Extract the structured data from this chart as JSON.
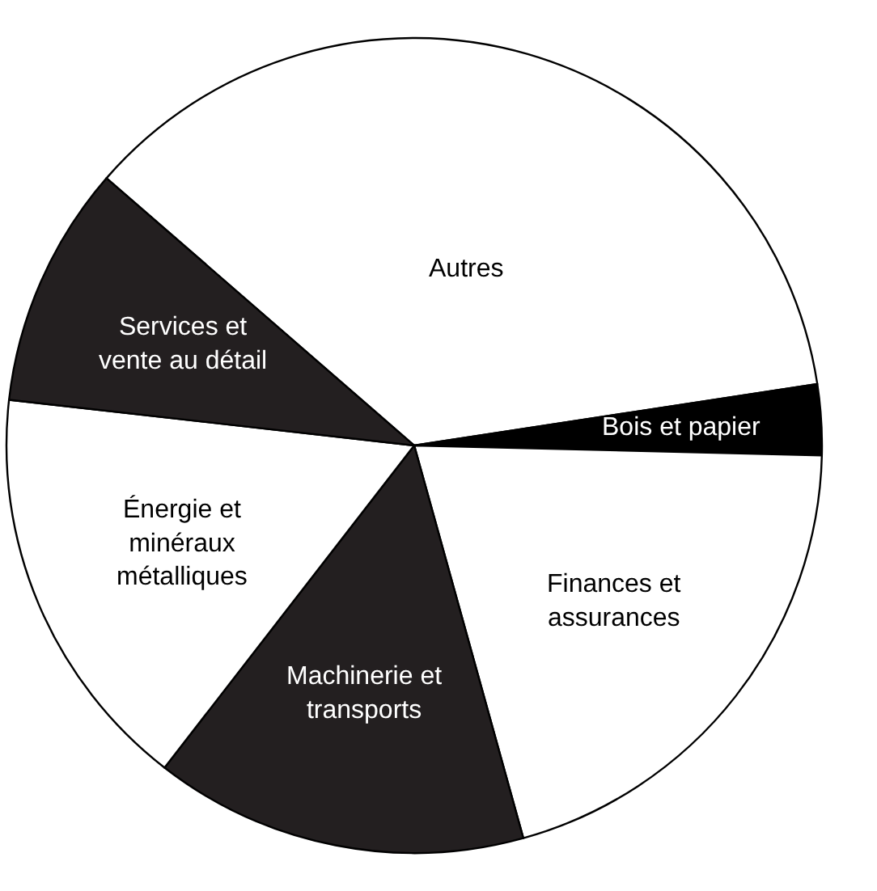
{
  "chart_data": {
    "type": "pie",
    "categories": [
      "Autres",
      "Bois et papier",
      "Finances et assurances",
      "Machinerie et transports",
      "Énergie et minéraux métalliques",
      "Services et vente au détail"
    ],
    "values": [
      36.2,
      2.8,
      20.3,
      14.8,
      16.3,
      9.6
    ],
    "colors": [
      "#ffffff",
      "#000000",
      "#ffffff",
      "#231f20",
      "#ffffff",
      "#231f20"
    ],
    "legend": false
  }
}
